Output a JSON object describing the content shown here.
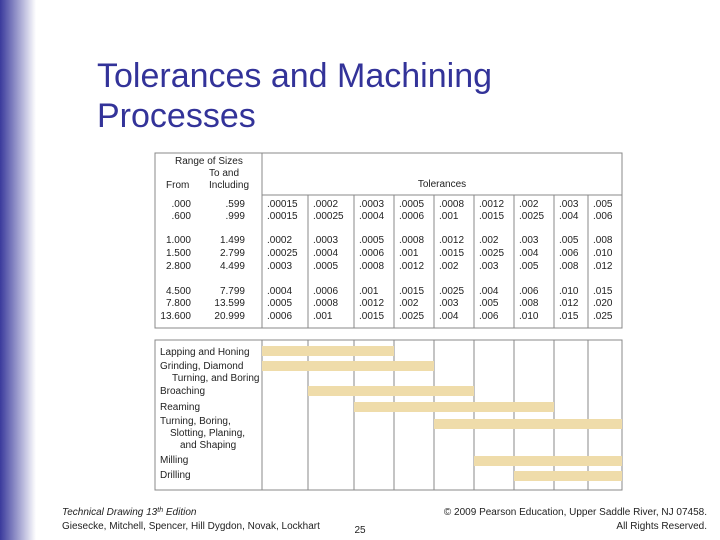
{
  "title": "Tolerances and Machining Processes",
  "table": {
    "header": {
      "range": "Range of Sizes",
      "from": "From",
      "to": [
        "To and",
        "Including"
      ],
      "tolerances": "Tolerances"
    },
    "rows": [
      {
        "from": ".000",
        "to": ".599",
        "tolerances": [
          ".00015",
          ".0002",
          ".0003",
          ".0005",
          ".0008",
          ".0012",
          ".002",
          ".003",
          ".005"
        ]
      },
      {
        "from": ".600",
        "to": ".999",
        "tolerances": [
          ".00015",
          ".00025",
          ".0004",
          ".0006",
          ".001",
          ".0015",
          ".0025",
          ".004",
          ".006"
        ]
      },
      {
        "from": "1.000",
        "to": "1.499",
        "tolerances": [
          ".0002",
          ".0003",
          ".0005",
          ".0008",
          ".0012",
          ".002",
          ".003",
          ".005",
          ".008"
        ]
      },
      {
        "from": "1.500",
        "to": "2.799",
        "tolerances": [
          ".00025",
          ".0004",
          ".0006",
          ".001",
          ".0015",
          ".0025",
          ".004",
          ".006",
          ".010"
        ]
      },
      {
        "from": "2.800",
        "to": "4.499",
        "tolerances": [
          ".0003",
          ".0005",
          ".0008",
          ".0012",
          ".002",
          ".003",
          ".005",
          ".008",
          ".012"
        ]
      },
      {
        "from": "4.500",
        "to": "7.799",
        "tolerances": [
          ".0004",
          ".0006",
          ".001",
          ".0015",
          ".0025",
          ".004",
          ".006",
          ".010",
          ".015"
        ]
      },
      {
        "from": "7.800",
        "to": "13.599",
        "tolerances": [
          ".0005",
          ".0008",
          ".0012",
          ".002",
          ".003",
          ".005",
          ".008",
          ".012",
          ".020"
        ]
      },
      {
        "from": "13.600",
        "to": "20.999",
        "tolerances": [
          ".0006",
          ".001",
          ".0015",
          ".0025",
          ".004",
          ".006",
          ".010",
          ".015",
          ".025"
        ]
      }
    ]
  },
  "processes": [
    {
      "label": [
        "Lapping and Honing"
      ],
      "span": [
        0,
        2
      ]
    },
    {
      "label": [
        "Grinding, Diamond",
        "Turning, and Boring"
      ],
      "span": [
        0,
        3
      ]
    },
    {
      "label": [
        "Broaching"
      ],
      "span": [
        1,
        4
      ]
    },
    {
      "label": [
        "Reaming"
      ],
      "span": [
        2,
        6
      ]
    },
    {
      "label": [
        "Turning, Boring,",
        "Slotting, Planing,",
        "and Shaping"
      ],
      "span": [
        4,
        8
      ]
    },
    {
      "label": [
        "Milling"
      ],
      "span": [
        5,
        8
      ]
    },
    {
      "label": [
        "Drilling"
      ],
      "span": [
        6,
        8
      ]
    }
  ],
  "footer": {
    "book": "Technical Drawing  13",
    "sup": "th",
    "edition": " Edition",
    "authors": "Giesecke, Mitchell, Spencer, Hill Dygdon, Novak, Lockhart",
    "copyright": "© 2009 Pearson Education, Upper Saddle River, NJ 07458.",
    "rights": "All Rights Reserved.",
    "page": "25"
  }
}
